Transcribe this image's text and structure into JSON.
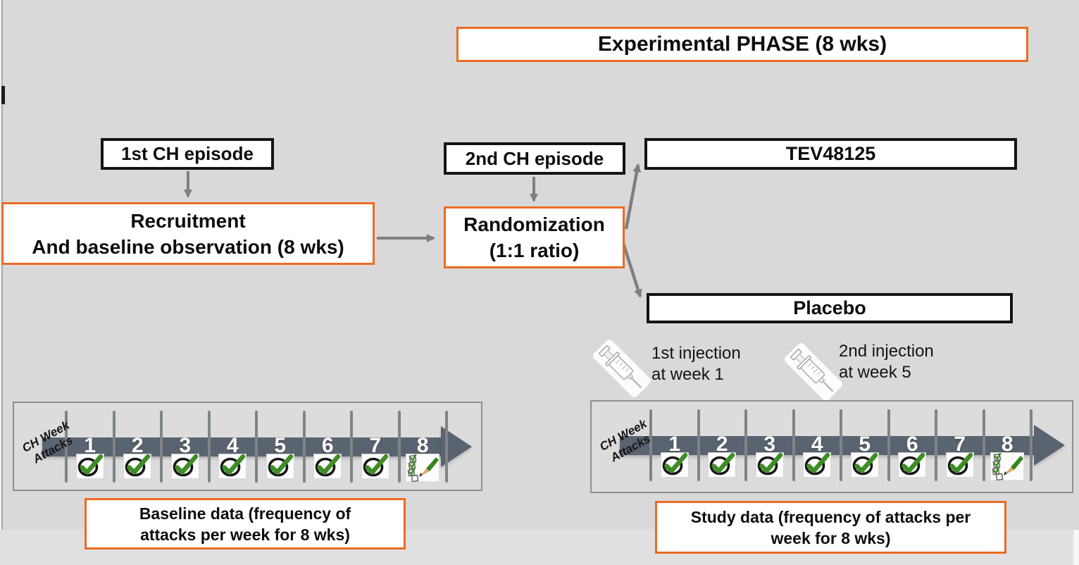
{
  "colors": {
    "background": "#d9d9d9",
    "accent_orange": "#ed6b23",
    "black_border": "#141414",
    "connector_gray": "#7f7f7f",
    "timeline_arrow": "#5a6370",
    "check_green": "#3f8d26"
  },
  "flow": {
    "experimental_phase_label": "Experimental PHASE (8 wks)",
    "first_episode_label": "1st CH episode",
    "recruitment_line1": "Recruitment",
    "recruitment_line2": "And baseline observation (8 wks)",
    "second_episode_label": "2nd CH episode",
    "randomization_line1": "Randomization",
    "randomization_line2": "(1:1 ratio)",
    "treatment_arm_label": "TEV48125",
    "placebo_arm_label": "Placebo"
  },
  "injections": [
    {
      "icon": "syringe-icon",
      "line1": "1st injection",
      "line2": "at week 1"
    },
    {
      "icon": "syringe-icon",
      "line1": "2nd injection",
      "line2": "at week 5"
    }
  ],
  "timelines": [
    {
      "name": "baseline",
      "axis_line1": "CH Week",
      "axis_line2": "Attacks",
      "weeks": [
        "1",
        "2",
        "3",
        "4",
        "5",
        "6",
        "7",
        "8"
      ],
      "week_icons": [
        "check-icon",
        "check-icon",
        "check-icon",
        "check-icon",
        "check-icon",
        "check-icon",
        "check-icon",
        "checklist-pencil-icon"
      ],
      "caption_line1": "Baseline data (frequency of",
      "caption_line2": "attacks per week for 8 wks)"
    },
    {
      "name": "study",
      "axis_line1": "CH Week",
      "axis_line2": "Attacks",
      "weeks": [
        "1",
        "2",
        "3",
        "4",
        "5",
        "6",
        "7",
        "8"
      ],
      "week_icons": [
        "check-icon",
        "check-icon",
        "check-icon",
        "check-icon",
        "check-icon",
        "check-icon",
        "check-icon",
        "checklist-pencil-icon"
      ],
      "caption_line1": "Study data (frequency of attacks per",
      "caption_line2": "week for 8 wks)"
    }
  ]
}
